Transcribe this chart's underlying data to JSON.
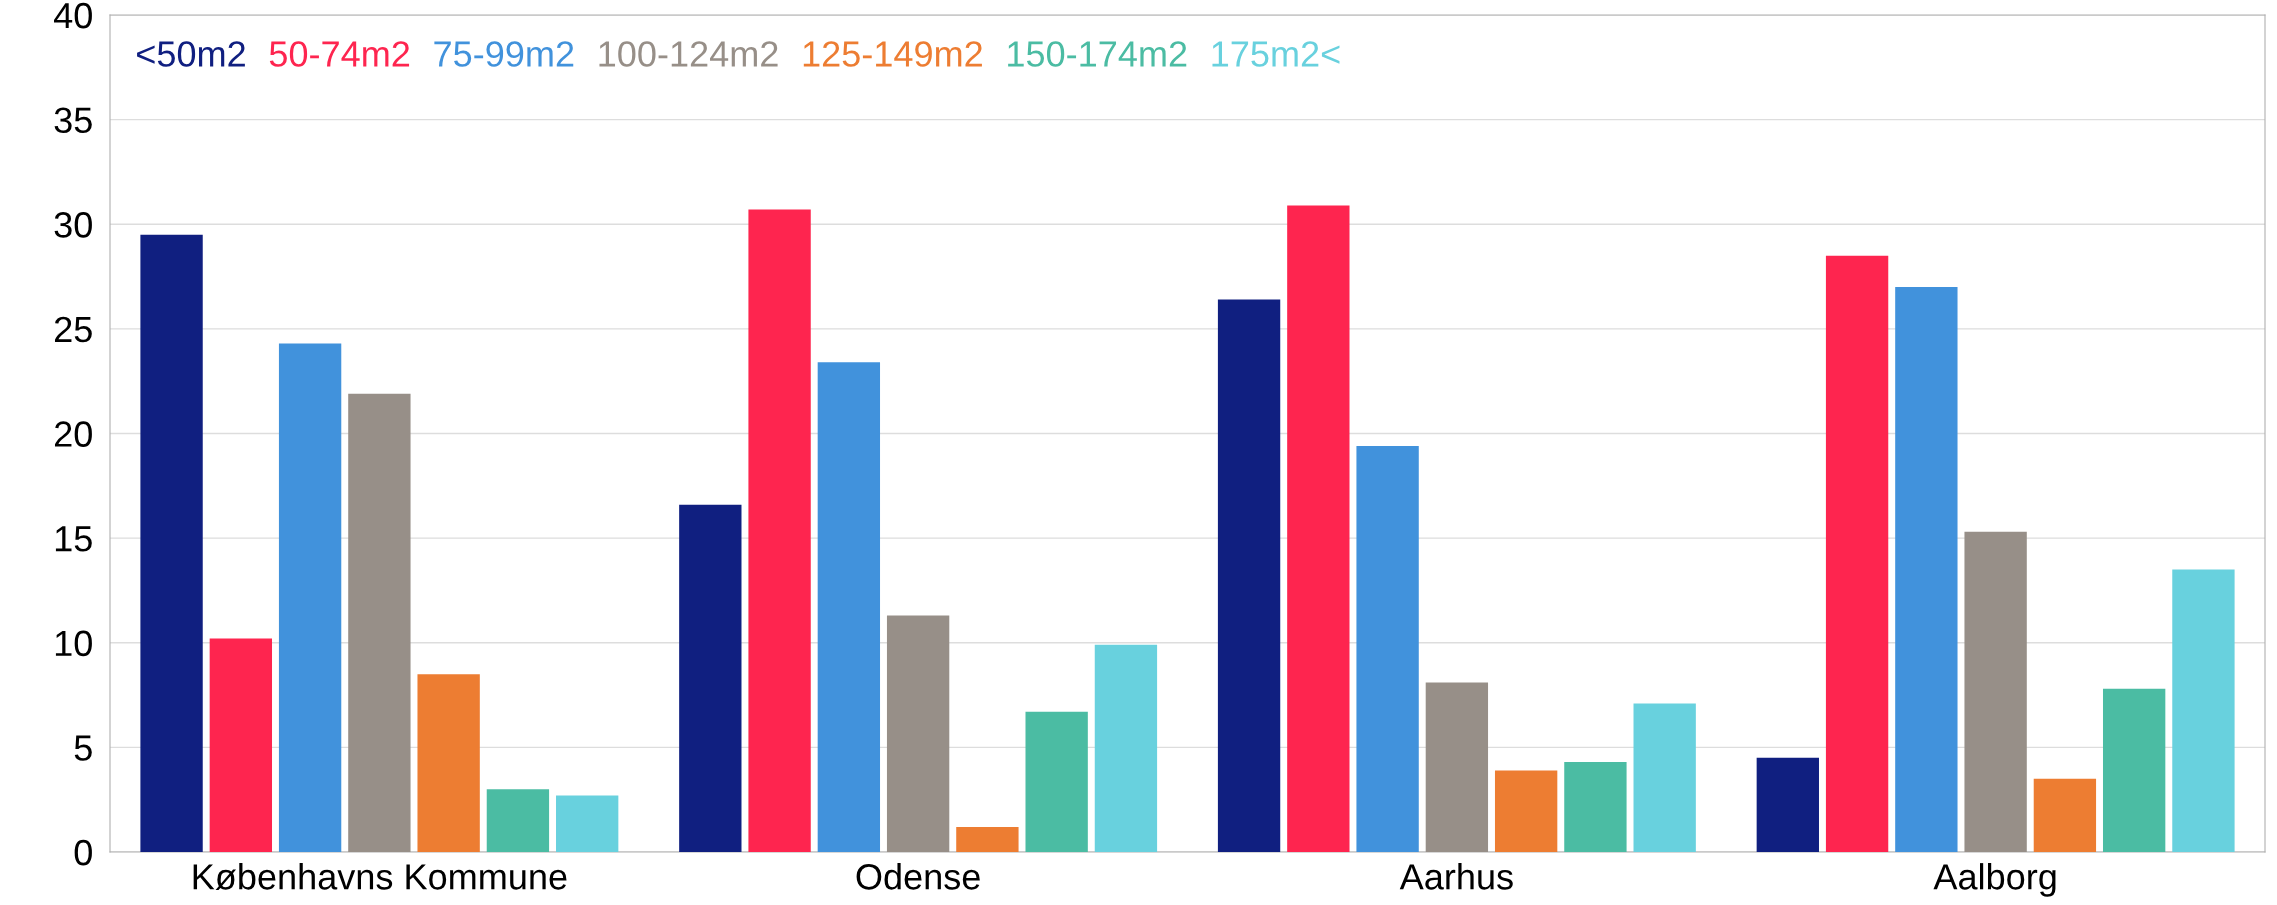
{
  "chart_data": {
    "type": "bar",
    "categories": [
      "Københavns Kommune",
      "Odense",
      "Aarhus",
      "Aalborg"
    ],
    "series": [
      {
        "name": "<50m2",
        "color": "#101f80",
        "values": [
          29.5,
          16.6,
          26.4,
          4.5
        ]
      },
      {
        "name": "50-74m2",
        "color": "#fe254f",
        "values": [
          10.2,
          30.7,
          30.9,
          28.5
        ]
      },
      {
        "name": "75-99m2",
        "color": "#4192dc",
        "values": [
          24.3,
          23.4,
          19.4,
          27.0
        ]
      },
      {
        "name": "100-124m2",
        "color": "#978f88",
        "values": [
          21.9,
          11.3,
          8.1,
          15.3
        ]
      },
      {
        "name": "125-149m2",
        "color": "#ed7d32",
        "values": [
          8.5,
          1.2,
          3.9,
          3.5
        ]
      },
      {
        "name": "150-174m2",
        "color": "#4bbca3",
        "values": [
          3.0,
          6.7,
          4.3,
          7.8
        ]
      },
      {
        "name": "175m2<",
        "color": "#68d1de",
        "values": [
          2.7,
          9.9,
          7.1,
          13.5
        ]
      }
    ],
    "ylim": [
      0,
      40
    ],
    "yticks": [
      0,
      5,
      10,
      15,
      20,
      25,
      30,
      35,
      40
    ],
    "grid": "y",
    "legend": "top left"
  }
}
